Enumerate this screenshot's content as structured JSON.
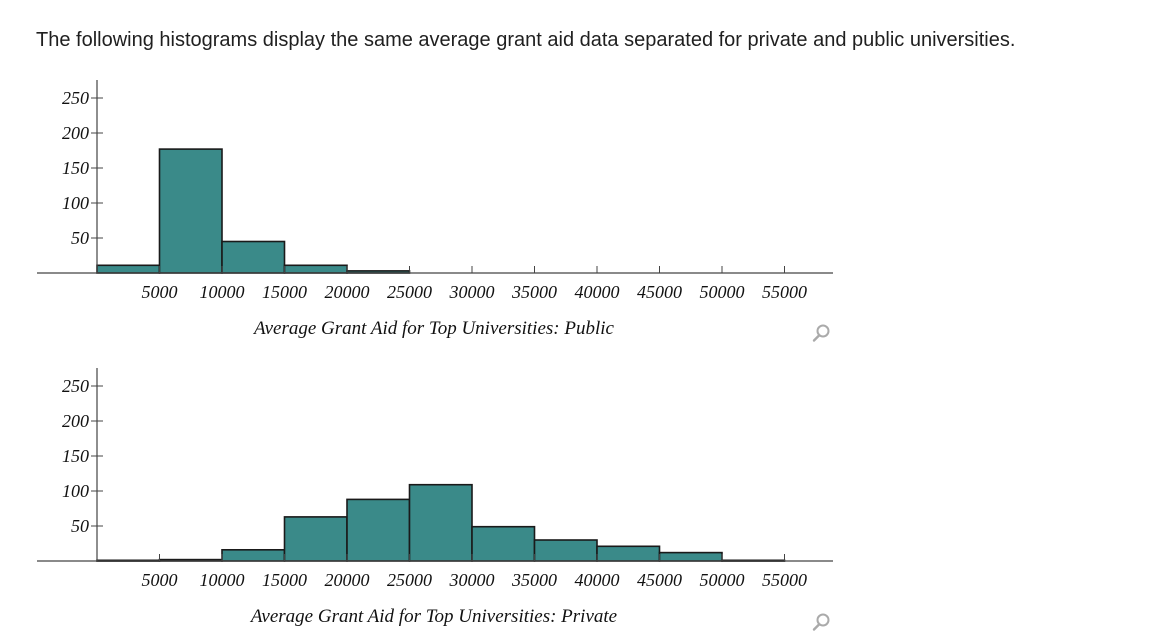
{
  "intro_text": "The following histograms display the same average grant aid data separated for private and public universities.",
  "colors": {
    "bar_fill": "#3a8a89",
    "bar_stroke": "#1a1a1a",
    "axis": "#444444",
    "zoom_icon": "#aaaaaa"
  },
  "icons": [
    "zoom-icon"
  ],
  "chart_data": [
    {
      "type": "bar",
      "xlabel": "Average Grant Aid for Top Universities: Public",
      "xlim": [
        0,
        55000
      ],
      "ylim": [
        0,
        250
      ],
      "xticks": [
        5000,
        10000,
        15000,
        20000,
        25000,
        30000,
        35000,
        40000,
        45000,
        50000,
        55000
      ],
      "xtick_labels": [
        "5000",
        "10000",
        "15000",
        "20000",
        "25000",
        "30000",
        "35000",
        "40000",
        "45000",
        "50000",
        "55000"
      ],
      "yticks": [
        50,
        100,
        150,
        200,
        250
      ],
      "ytick_labels": [
        "50",
        "100",
        "150",
        "200",
        "250"
      ],
      "bin_width": 5000,
      "bins": [
        {
          "start": 0,
          "end": 5000,
          "count": 11
        },
        {
          "start": 5000,
          "end": 10000,
          "count": 177
        },
        {
          "start": 10000,
          "end": 15000,
          "count": 45
        },
        {
          "start": 15000,
          "end": 20000,
          "count": 11
        },
        {
          "start": 20000,
          "end": 25000,
          "count": 3
        }
      ]
    },
    {
      "type": "bar",
      "xlabel": "Average Grant Aid for Top Universities: Private",
      "xlim": [
        0,
        55000
      ],
      "ylim": [
        0,
        250
      ],
      "xticks": [
        5000,
        10000,
        15000,
        20000,
        25000,
        30000,
        35000,
        40000,
        45000,
        50000,
        55000
      ],
      "xtick_labels": [
        "5000",
        "10000",
        "15000",
        "20000",
        "25000",
        "30000",
        "35000",
        "40000",
        "45000",
        "50000",
        "55000"
      ],
      "yticks": [
        50,
        100,
        150,
        200,
        250
      ],
      "ytick_labels": [
        "50",
        "100",
        "150",
        "200",
        "250"
      ],
      "bin_width": 5000,
      "bins": [
        {
          "start": 0,
          "end": 5000,
          "count": 1
        },
        {
          "start": 5000,
          "end": 10000,
          "count": 2
        },
        {
          "start": 10000,
          "end": 15000,
          "count": 16
        },
        {
          "start": 15000,
          "end": 20000,
          "count": 63
        },
        {
          "start": 20000,
          "end": 25000,
          "count": 88
        },
        {
          "start": 25000,
          "end": 30000,
          "count": 109
        },
        {
          "start": 30000,
          "end": 35000,
          "count": 49
        },
        {
          "start": 35000,
          "end": 40000,
          "count": 30
        },
        {
          "start": 40000,
          "end": 45000,
          "count": 21
        },
        {
          "start": 45000,
          "end": 50000,
          "count": 12
        },
        {
          "start": 50000,
          "end": 55000,
          "count": 1
        }
      ]
    }
  ]
}
